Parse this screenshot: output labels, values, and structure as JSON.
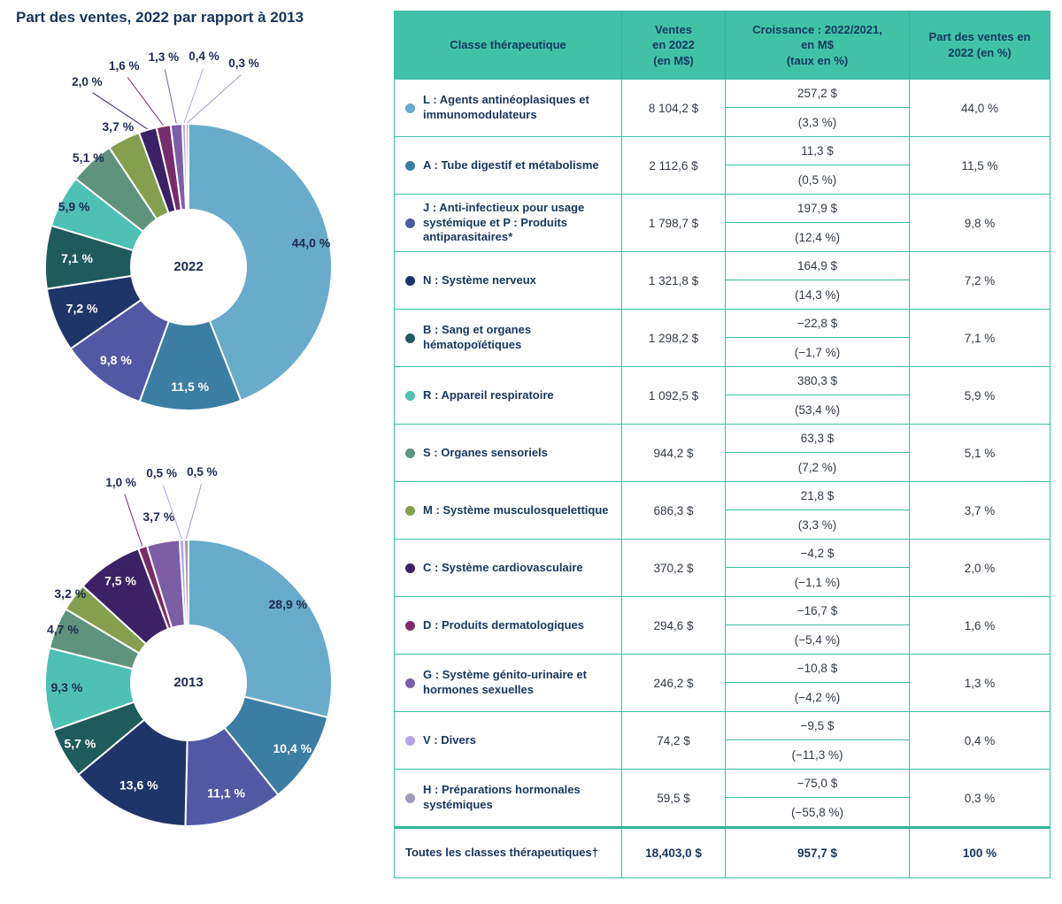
{
  "title": "Part des ventes, 2022 par rapport à 2013",
  "accent_colors": {
    "teal_border": "#3ABFA3",
    "header_bg": "#41C2A6",
    "navy_text": "#17365D"
  },
  "palette": {
    "L": "#69ABCA",
    "A": "#3C7DA3",
    "J": "#5159A4",
    "N": "#1F3468",
    "B": "#1F5A5C",
    "R": "#4EC0B4",
    "S": "#5F937E",
    "M": "#84A04F",
    "C": "#3B2166",
    "D": "#782C6B",
    "G": "#7D5EA5",
    "V": "#B5A5E6",
    "H": "#A29ABB"
  },
  "chart_data": [
    {
      "type": "pie",
      "title": "2022",
      "center_label": "2022",
      "unit": "%",
      "legend_position": "table-right",
      "slices": [
        {
          "cls": "L",
          "pct": 44.0,
          "label": "44,0 %",
          "pos": "in",
          "txt": "d",
          "lr": 0.87
        },
        {
          "cls": "A",
          "pct": 11.5,
          "label": "11,5 %",
          "pos": "in",
          "txt": "w",
          "lr": 0.84
        },
        {
          "cls": "J",
          "pct": 9.8,
          "label": "9,8 %",
          "pos": "in",
          "txt": "w",
          "lr": 0.83
        },
        {
          "cls": "N",
          "pct": 7.2,
          "label": "7,2 %",
          "pos": "in",
          "txt": "w",
          "lr": 0.8
        },
        {
          "cls": "B",
          "pct": 7.1,
          "label": "7,1 %",
          "pos": "in",
          "txt": "w",
          "lr": 0.78
        },
        {
          "cls": "R",
          "pct": 5.9,
          "label": "5,9 %",
          "pos": "in",
          "txt": "d",
          "lr": 0.9
        },
        {
          "cls": "S",
          "pct": 5.1,
          "label": "5,1 %",
          "pos": "in",
          "txt": "d",
          "lr": 1.03
        },
        {
          "cls": "M",
          "pct": 3.7,
          "label": "3,7 %",
          "pos": "in",
          "txt": "d",
          "lr": 1.09
        },
        {
          "cls": "C",
          "pct": 2.0,
          "label": "2,0 %",
          "pos": "out",
          "txt": "d"
        },
        {
          "cls": "D",
          "pct": 1.6,
          "label": "1,6 %",
          "pos": "out",
          "txt": "d"
        },
        {
          "cls": "G",
          "pct": 1.3,
          "label": "1,3 %",
          "pos": "out",
          "txt": "d"
        },
        {
          "cls": "V",
          "pct": 0.4,
          "label": "0,4 %",
          "pos": "out",
          "txt": "d"
        },
        {
          "cls": "H",
          "pct": 0.3,
          "label": "0,3 %",
          "pos": "out",
          "txt": "d"
        }
      ]
    },
    {
      "type": "pie",
      "title": "2013",
      "center_label": "2013",
      "unit": "%",
      "legend_position": "table-right",
      "slices": [
        {
          "cls": "L",
          "pct": 28.9,
          "label": "28,9 %",
          "pos": "in",
          "txt": "d",
          "lr": 0.88
        },
        {
          "cls": "A",
          "pct": 10.4,
          "label": "10,4 %",
          "pos": "in",
          "txt": "w",
          "lr": 0.86
        },
        {
          "cls": "J",
          "pct": 11.1,
          "label": "11,1 %",
          "pos": "in",
          "txt": "w",
          "lr": 0.82
        },
        {
          "cls": "N",
          "pct": 13.6,
          "label": "13,6 %",
          "pos": "in",
          "txt": "w",
          "lr": 0.8
        },
        {
          "cls": "B",
          "pct": 5.7,
          "label": "5,7 %",
          "pos": "in",
          "txt": "w",
          "lr": 0.87
        },
        {
          "cls": "R",
          "pct": 9.3,
          "label": "9,3 %",
          "pos": "in",
          "txt": "d",
          "lr": 0.85
        },
        {
          "cls": "S",
          "pct": 4.7,
          "label": "4,7 %",
          "pos": "in",
          "txt": "d",
          "lr": 0.95
        },
        {
          "cls": "M",
          "pct": 3.2,
          "label": "3,2 %",
          "pos": "in",
          "txt": "d",
          "lr": 1.03
        },
        {
          "cls": "C",
          "pct": 7.5,
          "label": "7,5 %",
          "pos": "in",
          "txt": "w",
          "lr": 0.85
        },
        {
          "cls": "D",
          "pct": 1.0,
          "label": "1,0 %",
          "pos": "out",
          "txt": "d"
        },
        {
          "cls": "G",
          "pct": 3.7,
          "label": "3,7 %",
          "pos": "in",
          "txt": "d",
          "lr": 1.17
        },
        {
          "cls": "V",
          "pct": 0.5,
          "label": "0,5 %",
          "pos": "out",
          "txt": "d"
        },
        {
          "cls": "H",
          "pct": 0.5,
          "label": "0,5 %",
          "pos": "out",
          "txt": "d"
        }
      ]
    }
  ],
  "table": {
    "headers": [
      "Classe thérapeutique",
      "Ventes\nen 2022\n(en M$)",
      "Croissance : 2022/2021,\nen M$\n(taux en %)",
      "Part des ventes en\n2022 (en %)"
    ],
    "rows": [
      {
        "cls": "L",
        "classe": "L : Agents antinéoplasiques et immunomodulateurs",
        "ventes": "8 104,2 $",
        "croissance_ms": "257,2 $",
        "croissance_taux": "(3,3 %)",
        "part": "44,0 %"
      },
      {
        "cls": "A",
        "classe": "A : Tube digestif et métabolisme",
        "ventes": "2 112,6 $",
        "croissance_ms": "11,3 $",
        "croissance_taux": "(0,5 %)",
        "part": "11,5 %"
      },
      {
        "cls": "J",
        "classe": "J : Anti-infectieux pour usage systémique et P : Produits antiparasitaires*",
        "ventes": "1 798,7 $",
        "croissance_ms": "197,9 $",
        "croissance_taux": "(12,4 %)",
        "part": "9,8 %"
      },
      {
        "cls": "N",
        "classe": "N : Système nerveux",
        "ventes": "1 321,8 $",
        "croissance_ms": "164,9 $",
        "croissance_taux": "(14,3 %)",
        "part": "7,2 %"
      },
      {
        "cls": "B",
        "classe": "B : Sang et organes hématopoïétiques",
        "ventes": "1 298,2 $",
        "croissance_ms": "−22,8 $",
        "croissance_taux": "(−1,7 %)",
        "part": "7,1 %"
      },
      {
        "cls": "R",
        "classe": "R : Appareil respiratoire",
        "ventes": "1 092,5 $",
        "croissance_ms": "380,3 $",
        "croissance_taux": "(53,4 %)",
        "part": "5,9 %"
      },
      {
        "cls": "S",
        "classe": "S : Organes sensoriels",
        "ventes": "944,2 $",
        "croissance_ms": "63,3 $",
        "croissance_taux": "(7,2 %)",
        "part": "5,1 %"
      },
      {
        "cls": "M",
        "classe": "M : Système musculosquelettique",
        "ventes": "686,3 $",
        "croissance_ms": "21,8 $",
        "croissance_taux": "(3,3 %)",
        "part": "3,7 %"
      },
      {
        "cls": "C",
        "classe": "C : Système cardiovasculaire",
        "ventes": "370,2 $",
        "croissance_ms": "−4,2 $",
        "croissance_taux": "(−1,1 %)",
        "part": "2,0 %"
      },
      {
        "cls": "D",
        "classe": "D : Produits dermatologiques",
        "ventes": "294,6 $",
        "croissance_ms": "−16,7 $",
        "croissance_taux": "(−5,4 %)",
        "part": "1,6 %"
      },
      {
        "cls": "G",
        "classe": "G : Système génito-urinaire et hormones sexuelles",
        "ventes": "246,2 $",
        "croissance_ms": "−10,8 $",
        "croissance_taux": "(−4,2 %)",
        "part": "1,3 %"
      },
      {
        "cls": "V",
        "classe": "V : Divers",
        "ventes": "74,2 $",
        "croissance_ms": "−9,5 $",
        "croissance_taux": "(−11,3 %)",
        "part": "0,4 %"
      },
      {
        "cls": "H",
        "classe": "H : Préparations hormonales systémiques",
        "ventes": "59,5 $",
        "croissance_ms": "−75,0 $",
        "croissance_taux": "(−55,8 %)",
        "part": "0,3 %"
      }
    ],
    "footer": {
      "classe": "Toutes les classes thérapeutiques†",
      "ventes": "18,403,0 $",
      "croissance": "957,7 $",
      "part": "100 %"
    }
  }
}
